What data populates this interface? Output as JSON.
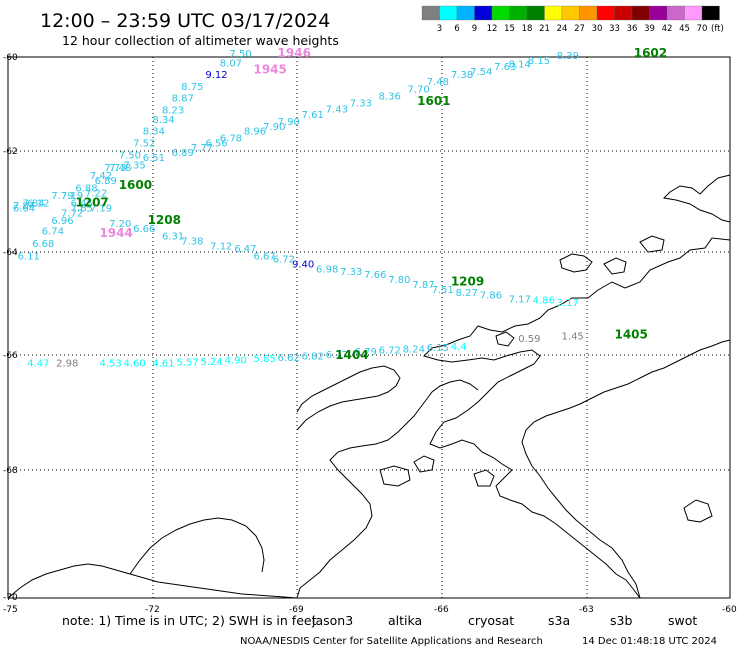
{
  "header": {
    "title": "12:00 – 23:59 UTC 03/17/2024",
    "subtitle": "12 hour collection of altimeter wave heights"
  },
  "colorbar": {
    "unit_label": "(ft)",
    "bins": [
      {
        "color": "#7f7f7f",
        "label": "3"
      },
      {
        "color": "#00ffff",
        "label": "6"
      },
      {
        "color": "#00b4ff",
        "label": "9"
      },
      {
        "color": "#0000d8",
        "label": "12"
      },
      {
        "color": "#00dc00",
        "label": "15"
      },
      {
        "color": "#00b000",
        "label": "18"
      },
      {
        "color": "#008000",
        "label": "21"
      },
      {
        "color": "#ffff00",
        "label": "24"
      },
      {
        "color": "#ffc800",
        "label": "27"
      },
      {
        "color": "#ff9600",
        "label": "30"
      },
      {
        "color": "#ff0000",
        "label": "33"
      },
      {
        "color": "#c80000",
        "label": "36"
      },
      {
        "color": "#800000",
        "label": "39"
      },
      {
        "color": "#990099",
        "label": "42"
      },
      {
        "color": "#cc66cc",
        "label": "45"
      },
      {
        "color": "#ff99ff",
        "label": "70"
      },
      {
        "color": "#000000",
        "label": ""
      }
    ]
  },
  "map": {
    "lat_labels": [
      "-60",
      "-62",
      "-64",
      "-66",
      "-68",
      "-70"
    ],
    "lon_labels": [
      "-75",
      "-72",
      "-69",
      "-66",
      "-63",
      "-60"
    ],
    "tracks": [
      {
        "name": "1601/1602",
        "color": "#2ec4e6",
        "readings": [
          {
            "lon": -63.6,
            "lat": -60.04,
            "text": "8.39"
          },
          {
            "lon": -64.2,
            "lat": -60.15,
            "text": "8.15"
          },
          {
            "lon": -64.6,
            "lat": -60.22,
            "text": "8.14"
          },
          {
            "lon": -64.9,
            "lat": -60.28,
            "text": "7.63"
          },
          {
            "lon": -65.4,
            "lat": -60.38,
            "text": "7.54"
          },
          {
            "lon": -65.8,
            "lat": -60.45,
            "text": "7.38"
          },
          {
            "lon": -66.3,
            "lat": -60.6,
            "text": "7.48"
          },
          {
            "lon": -66.7,
            "lat": -60.75,
            "text": "7.70"
          },
          {
            "lon": -67.3,
            "lat": -60.9,
            "text": "8.36"
          },
          {
            "lon": -67.9,
            "lat": -61.05,
            "text": "7.33"
          },
          {
            "lon": -68.4,
            "lat": -61.18,
            "text": "7.43"
          },
          {
            "lon": -68.9,
            "lat": -61.3,
            "text": "7.61"
          },
          {
            "lon": -69.4,
            "lat": -61.45,
            "text": "7.90"
          },
          {
            "lon": -69.7,
            "lat": -61.55,
            "text": "7.90"
          },
          {
            "lon": -70.1,
            "lat": -61.65,
            "text": "8.96"
          },
          {
            "lon": -70.6,
            "lat": -61.8,
            "text": "6.78"
          },
          {
            "lon": -70.9,
            "lat": -61.9,
            "text": "6.56"
          },
          {
            "lon": -71.2,
            "lat": -62.0,
            "text": "7.77"
          },
          {
            "lon": -71.6,
            "lat": -62.1,
            "text": "6.89"
          },
          {
            "lon": -72.2,
            "lat": -62.2,
            "text": "6.51"
          },
          {
            "lon": -72.6,
            "lat": -62.35,
            "text": "7.35"
          },
          {
            "lon": -72.9,
            "lat": -62.4,
            "text": "7.48"
          },
          {
            "lon": -73.3,
            "lat": -62.55,
            "text": "7.42"
          },
          {
            "lon": -73.6,
            "lat": -62.8,
            "text": "6.88"
          },
          {
            "lon": -74.1,
            "lat": -62.95,
            "text": "7.79"
          },
          {
            "lon": -74.7,
            "lat": -63.1,
            "text": "7.84"
          },
          {
            "lon": -74.9,
            "lat": -63.2,
            "text": "6.64"
          }
        ]
      },
      {
        "name": "1945/1946",
        "color": "#2ec4e6",
        "readings": [
          {
            "lon": -70.4,
            "lat": -60.0,
            "text": "7.50"
          },
          {
            "lon": -70.6,
            "lat": -60.2,
            "text": "8.07"
          },
          {
            "lon": -70.9,
            "lat": -60.45,
            "text": "9.12"
          },
          {
            "lon": -71.4,
            "lat": -60.7,
            "text": "8.75"
          },
          {
            "lon": -71.6,
            "lat": -60.95,
            "text": "8.87"
          },
          {
            "lon": -71.8,
            "lat": -61.2,
            "text": "8.23"
          },
          {
            "lon": -72.0,
            "lat": -61.4,
            "text": "8.34"
          },
          {
            "lon": -72.2,
            "lat": -61.65,
            "text": "8.34"
          },
          {
            "lon": -72.4,
            "lat": -61.9,
            "text": "7.52"
          },
          {
            "lon": -72.7,
            "lat": -62.15,
            "text": "7.50"
          },
          {
            "lon": -73.0,
            "lat": -62.4,
            "text": "7.73"
          },
          {
            "lon": -73.2,
            "lat": -62.65,
            "text": "6.89"
          },
          {
            "lon": -73.4,
            "lat": -62.9,
            "text": "7.22"
          },
          {
            "lon": -73.7,
            "lat": -63.1,
            "text": "6.45"
          },
          {
            "lon": -73.9,
            "lat": -63.3,
            "text": "7.72"
          },
          {
            "lon": -74.1,
            "lat": -63.45,
            "text": "6.96"
          },
          {
            "lon": -74.3,
            "lat": -63.65,
            "text": "6.74"
          },
          {
            "lon": -74.5,
            "lat": -63.9,
            "text": "6.68"
          },
          {
            "lon": -74.8,
            "lat": -64.15,
            "text": "6.11"
          }
        ]
      },
      {
        "name": "1207/1208/1209",
        "color": "#2ec4e6",
        "readings": [
          {
            "lon": -74.9,
            "lat": -63.15,
            "text": "7.84"
          },
          {
            "lon": -74.6,
            "lat": -63.1,
            "text": "6.12"
          },
          {
            "lon": -73.9,
            "lat": -62.95,
            "text": "7.19"
          },
          {
            "lon": -73.7,
            "lat": -63.2,
            "text": "7.65"
          },
          {
            "lon": -73.3,
            "lat": -63.2,
            "text": "7.19"
          },
          {
            "lon": -72.9,
            "lat": -63.5,
            "text": "7.20"
          },
          {
            "lon": -72.4,
            "lat": -63.6,
            "text": "6.66"
          },
          {
            "lon": -71.8,
            "lat": -63.75,
            "text": "6.31"
          },
          {
            "lon": -71.4,
            "lat": -63.85,
            "text": "7.38"
          },
          {
            "lon": -70.8,
            "lat": -63.95,
            "text": "7.12"
          },
          {
            "lon": -70.3,
            "lat": -64.0,
            "text": "6.47"
          },
          {
            "lon": -69.9,
            "lat": -64.15,
            "text": "6.67"
          },
          {
            "lon": -69.5,
            "lat": -64.2,
            "text": "6.72"
          },
          {
            "lon": -69.1,
            "lat": -64.3,
            "text": "9.40"
          },
          {
            "lon": -68.6,
            "lat": -64.4,
            "text": "6.98"
          },
          {
            "lon": -68.1,
            "lat": -64.45,
            "text": "7.33"
          },
          {
            "lon": -67.6,
            "lat": -64.5,
            "text": "7.66"
          },
          {
            "lon": -67.1,
            "lat": -64.6,
            "text": "7.80"
          },
          {
            "lon": -66.6,
            "lat": -64.7,
            "text": "7.87"
          },
          {
            "lon": -66.2,
            "lat": -64.8,
            "text": "7.51"
          },
          {
            "lon": -65.7,
            "lat": -64.85,
            "text": "8.27"
          },
          {
            "lon": -65.2,
            "lat": -64.9,
            "text": "7.86"
          },
          {
            "lon": -64.6,
            "lat": -64.98,
            "text": "7.17"
          },
          {
            "lon": -64.1,
            "lat": -65.0,
            "text": "4.86"
          },
          {
            "lon": -63.6,
            "lat": -65.05,
            "text": "3.17"
          }
        ]
      },
      {
        "name": "1404/1405",
        "color": "#2ec4e6",
        "readings": [
          {
            "lon": -74.6,
            "lat": -66.2,
            "text": "4.47"
          },
          {
            "lon": -74.0,
            "lat": -66.2,
            "text": "2.98"
          },
          {
            "lon": -73.1,
            "lat": -66.2,
            "text": "4.53"
          },
          {
            "lon": -72.6,
            "lat": -66.2,
            "text": "4.60"
          },
          {
            "lon": -72.0,
            "lat": -66.2,
            "text": "4.61"
          },
          {
            "lon": -71.5,
            "lat": -66.18,
            "text": "5.57"
          },
          {
            "lon": -71.0,
            "lat": -66.17,
            "text": "5.24"
          },
          {
            "lon": -70.5,
            "lat": -66.15,
            "text": "4.90"
          },
          {
            "lon": -69.9,
            "lat": -66.12,
            "text": "5.85"
          },
          {
            "lon": -69.4,
            "lat": -66.1,
            "text": "6.62"
          },
          {
            "lon": -68.9,
            "lat": -66.08,
            "text": "6.82"
          },
          {
            "lon": -68.4,
            "lat": -66.05,
            "text": "6.77"
          },
          {
            "lon": -67.8,
            "lat": -66.0,
            "text": "6.79"
          },
          {
            "lon": -67.3,
            "lat": -65.97,
            "text": "6.72"
          },
          {
            "lon": -66.8,
            "lat": -65.95,
            "text": "8.24"
          },
          {
            "lon": -66.3,
            "lat": -65.92,
            "text": "6.15"
          },
          {
            "lon": -65.8,
            "lat": -65.9,
            "text": "4.4"
          },
          {
            "lon": -64.4,
            "lat": -65.75,
            "text": "0.59"
          },
          {
            "lon": -63.5,
            "lat": -65.7,
            "text": "1.45"
          }
        ]
      }
    ],
    "pass_labels": [
      {
        "text": "1946",
        "lon": -69.4,
        "lat": -59.98,
        "color": "#ee88dd"
      },
      {
        "text": "1945",
        "lon": -69.9,
        "lat": -60.35,
        "color": "#ee88dd"
      },
      {
        "text": "1602",
        "lon": -62.0,
        "lat": -59.95,
        "color": "#008000"
      },
      {
        "text": "1601",
        "lon": -66.5,
        "lat": -61.02,
        "color": "#008000"
      },
      {
        "text": "1600",
        "lon": -72.7,
        "lat": -62.75,
        "color": "#008000"
      },
      {
        "text": "1207",
        "lon": -73.6,
        "lat": -63.1,
        "color": "#008000"
      },
      {
        "text": "1208",
        "lon": -72.1,
        "lat": -63.45,
        "color": "#008000"
      },
      {
        "text": "1944",
        "lon": -73.1,
        "lat": -63.7,
        "color": "#ee88dd"
      },
      {
        "text": "1209",
        "lon": -65.8,
        "lat": -64.65,
        "color": "#008000"
      },
      {
        "text": "1404",
        "lon": -68.2,
        "lat": -66.07,
        "color": "#008000"
      },
      {
        "text": "1405",
        "lon": -62.4,
        "lat": -65.68,
        "color": "#008000"
      }
    ]
  },
  "footer": {
    "note_prefix": "note:  1) Time is in UTC;  2) SWH is in feet",
    "satellites": [
      {
        "name": "jason3",
        "color": "#008000"
      },
      {
        "name": "altika",
        "color": "#ffa500"
      },
      {
        "name": "cryosat",
        "color": "#ff0000"
      },
      {
        "name": "s3a",
        "color": "#800000"
      },
      {
        "name": "s3b",
        "color": "#b0a0ee"
      },
      {
        "name": "swot",
        "color": "#ee88dd"
      }
    ],
    "credit": "NOAA/NESDIS Center for Satellite Applications and Research",
    "timestamp": "14 Dec 01:48:18 UTC 2024"
  }
}
